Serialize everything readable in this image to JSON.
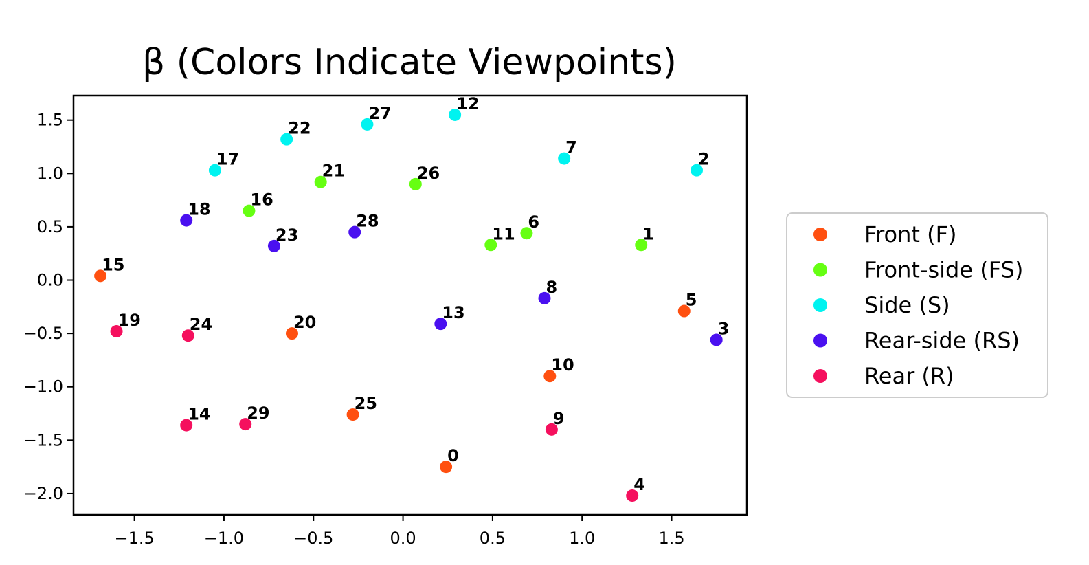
{
  "chart_data": {
    "type": "scatter",
    "title": "β (Colors Indicate Viewpoints)",
    "xlabel": "",
    "ylabel": "",
    "xlim": [
      -1.84,
      1.92
    ],
    "ylim": [
      -2.2,
      1.73
    ],
    "xticks": [
      -1.5,
      -1.0,
      -0.5,
      0.0,
      0.5,
      1.0,
      1.5
    ],
    "xtick_labels": [
      "−1.5",
      "−1.0",
      "−0.5",
      "0.0",
      "0.5",
      "1.0",
      "1.5"
    ],
    "yticks": [
      1.5,
      1.0,
      0.5,
      0.0,
      -0.5,
      -1.0,
      -1.5,
      -2.0
    ],
    "ytick_labels": [
      "1.5",
      "1.0",
      "0.5",
      "0.0",
      "−0.5",
      "−1.0",
      "−1.5",
      "−2.0"
    ],
    "grid": false,
    "legend_position": "outside-right",
    "series": [
      {
        "name": "Front (F)",
        "color": "#ff5010",
        "points": [
          {
            "label": "0",
            "x": 0.24,
            "y": -1.75
          },
          {
            "label": "5",
            "x": 1.57,
            "y": -0.29
          },
          {
            "label": "10",
            "x": 0.82,
            "y": -0.9
          },
          {
            "label": "15",
            "x": -1.69,
            "y": 0.04
          },
          {
            "label": "20",
            "x": -0.62,
            "y": -0.5
          },
          {
            "label": "25",
            "x": -0.28,
            "y": -1.26
          }
        ]
      },
      {
        "name": "Front-side (FS)",
        "color": "#66ff12",
        "points": [
          {
            "label": "1",
            "x": 1.33,
            "y": 0.33
          },
          {
            "label": "6",
            "x": 0.69,
            "y": 0.44
          },
          {
            "label": "11",
            "x": 0.49,
            "y": 0.33
          },
          {
            "label": "16",
            "x": -0.86,
            "y": 0.65
          },
          {
            "label": "21",
            "x": -0.46,
            "y": 0.92
          },
          {
            "label": "26",
            "x": 0.07,
            "y": 0.9
          }
        ]
      },
      {
        "name": "Side (S)",
        "color": "#00f3f0",
        "points": [
          {
            "label": "2",
            "x": 1.64,
            "y": 1.03
          },
          {
            "label": "7",
            "x": 0.9,
            "y": 1.14
          },
          {
            "label": "12",
            "x": 0.29,
            "y": 1.55
          },
          {
            "label": "17",
            "x": -1.05,
            "y": 1.03
          },
          {
            "label": "22",
            "x": -0.65,
            "y": 1.32
          },
          {
            "label": "27",
            "x": -0.2,
            "y": 1.46
          }
        ]
      },
      {
        "name": "Rear-side (RS)",
        "color": "#4a10f0",
        "points": [
          {
            "label": "3",
            "x": 1.75,
            "y": -0.56
          },
          {
            "label": "8",
            "x": 0.79,
            "y": -0.17
          },
          {
            "label": "13",
            "x": 0.21,
            "y": -0.41
          },
          {
            "label": "18",
            "x": -1.21,
            "y": 0.56
          },
          {
            "label": "23",
            "x": -0.72,
            "y": 0.32
          },
          {
            "label": "28",
            "x": -0.27,
            "y": 0.45
          }
        ]
      },
      {
        "name": "Rear (R)",
        "color": "#f5105e",
        "points": [
          {
            "label": "4",
            "x": 1.28,
            "y": -2.02
          },
          {
            "label": "9",
            "x": 0.83,
            "y": -1.4
          },
          {
            "label": "14",
            "x": -1.21,
            "y": -1.36
          },
          {
            "label": "19",
            "x": -1.6,
            "y": -0.48
          },
          {
            "label": "24",
            "x": -1.2,
            "y": -0.52
          },
          {
            "label": "29",
            "x": -0.88,
            "y": -1.35
          }
        ]
      }
    ]
  }
}
